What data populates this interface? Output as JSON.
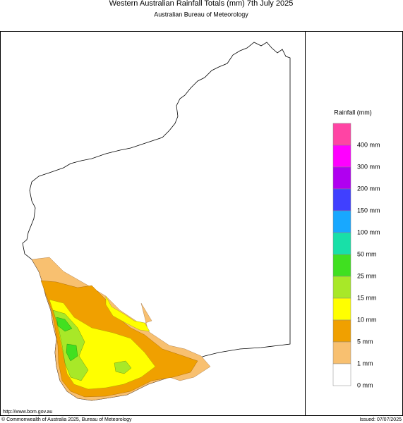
{
  "header": {
    "title": "Western Australian Rainfall Totals (mm) 7th July 2025",
    "subtitle": "Australian Bureau of Meteorology"
  },
  "legend": {
    "title": "Rainfall (mm)",
    "items": [
      {
        "label": "400 mm",
        "color": "#ff44a4"
      },
      {
        "label": "300 mm",
        "color": "#ff00ff"
      },
      {
        "label": "200 mm",
        "color": "#b000f0"
      },
      {
        "label": "150 mm",
        "color": "#4040ff"
      },
      {
        "label": "100 mm",
        "color": "#18a8ff"
      },
      {
        "label": "50 mm",
        "color": "#18e0a8"
      },
      {
        "label": "25 mm",
        "color": "#40e020"
      },
      {
        "label": "15 mm",
        "color": "#a8e828"
      },
      {
        "label": "10 mm",
        "color": "#ffff00"
      },
      {
        "label": "5 mm",
        "color": "#f0a000"
      },
      {
        "label": "1 mm",
        "color": "#f8c070"
      },
      {
        "label": "0 mm",
        "color": "#ffffff"
      }
    ]
  },
  "footer": {
    "url": "http://www.bom.gov.au",
    "copyright": "© Commonwealth of Australia 2025, Bureau of Meteorology",
    "issued": "Issued: 07/07/2025"
  }
}
